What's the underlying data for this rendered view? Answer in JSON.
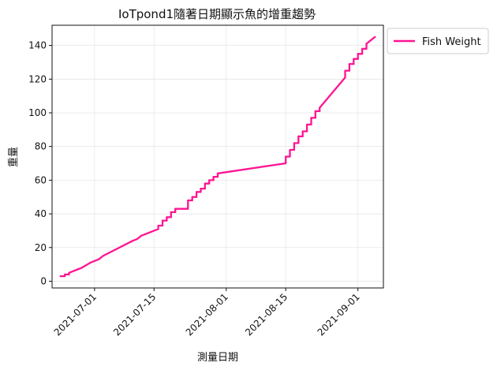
{
  "chart_data": {
    "type": "line",
    "title": "IoTpond1隨著日期顯示魚的增重趨勢",
    "xlabel": "測量日期",
    "ylabel": "重量",
    "xlim": [
      "2021-06-21",
      "2021-09-07"
    ],
    "ylim": [
      -4,
      152
    ],
    "x_ticks": [
      "2021-07-01",
      "2021-07-15",
      "2021-08-01",
      "2021-08-15",
      "2021-09-01"
    ],
    "y_ticks": [
      0,
      20,
      40,
      60,
      80,
      100,
      120,
      140
    ],
    "grid": true,
    "legend_position": "outside-top-right",
    "series": [
      {
        "name": "Fish Weight",
        "color": "#ff1493",
        "points": [
          [
            "2021-06-23",
            3
          ],
          [
            "2021-06-24",
            3
          ],
          [
            "2021-06-24",
            4
          ],
          [
            "2021-06-25",
            4
          ],
          [
            "2021-06-25",
            5
          ],
          [
            "2021-06-26",
            6
          ],
          [
            "2021-06-27",
            7
          ],
          [
            "2021-06-28",
            8
          ],
          [
            "2021-06-30",
            11
          ],
          [
            "2021-07-01",
            12
          ],
          [
            "2021-07-02",
            13
          ],
          [
            "2021-07-03",
            15
          ],
          [
            "2021-07-10",
            24
          ],
          [
            "2021-07-11",
            25
          ],
          [
            "2021-07-12",
            27
          ],
          [
            "2021-07-13",
            28
          ],
          [
            "2021-07-14",
            29
          ],
          [
            "2021-07-15",
            30
          ],
          [
            "2021-07-16",
            31
          ],
          [
            "2021-07-16",
            33
          ],
          [
            "2021-07-17",
            33
          ],
          [
            "2021-07-17",
            36
          ],
          [
            "2021-07-18",
            36
          ],
          [
            "2021-07-18",
            38
          ],
          [
            "2021-07-19",
            38
          ],
          [
            "2021-07-19",
            41
          ],
          [
            "2021-07-20",
            41
          ],
          [
            "2021-07-20",
            43
          ],
          [
            "2021-07-23",
            43
          ],
          [
            "2021-07-23",
            48
          ],
          [
            "2021-07-24",
            48
          ],
          [
            "2021-07-24",
            50
          ],
          [
            "2021-07-25",
            50
          ],
          [
            "2021-07-25",
            53
          ],
          [
            "2021-07-26",
            53
          ],
          [
            "2021-07-26",
            55
          ],
          [
            "2021-07-27",
            55
          ],
          [
            "2021-07-27",
            58
          ],
          [
            "2021-07-28",
            58
          ],
          [
            "2021-07-28",
            60
          ],
          [
            "2021-07-29",
            60
          ],
          [
            "2021-07-29",
            62
          ],
          [
            "2021-07-30",
            62
          ],
          [
            "2021-07-30",
            64
          ],
          [
            "2021-08-15",
            70
          ],
          [
            "2021-08-15",
            74
          ],
          [
            "2021-08-16",
            74
          ],
          [
            "2021-08-16",
            78
          ],
          [
            "2021-08-17",
            78
          ],
          [
            "2021-08-17",
            82
          ],
          [
            "2021-08-18",
            82
          ],
          [
            "2021-08-18",
            86
          ],
          [
            "2021-08-19",
            86
          ],
          [
            "2021-08-19",
            89
          ],
          [
            "2021-08-20",
            89
          ],
          [
            "2021-08-20",
            93
          ],
          [
            "2021-08-21",
            93
          ],
          [
            "2021-08-21",
            97
          ],
          [
            "2021-08-22",
            97
          ],
          [
            "2021-08-22",
            101
          ],
          [
            "2021-08-23",
            101
          ],
          [
            "2021-08-23",
            103
          ],
          [
            "2021-08-29",
            121
          ],
          [
            "2021-08-29",
            125
          ],
          [
            "2021-08-30",
            125
          ],
          [
            "2021-08-30",
            129
          ],
          [
            "2021-08-31",
            129
          ],
          [
            "2021-08-31",
            132
          ],
          [
            "2021-09-01",
            132
          ],
          [
            "2021-09-01",
            135
          ],
          [
            "2021-09-02",
            135
          ],
          [
            "2021-09-02",
            138
          ],
          [
            "2021-09-03",
            138
          ],
          [
            "2021-09-03",
            141
          ],
          [
            "2021-09-04",
            143
          ],
          [
            "2021-09-05",
            145
          ]
        ]
      }
    ]
  }
}
